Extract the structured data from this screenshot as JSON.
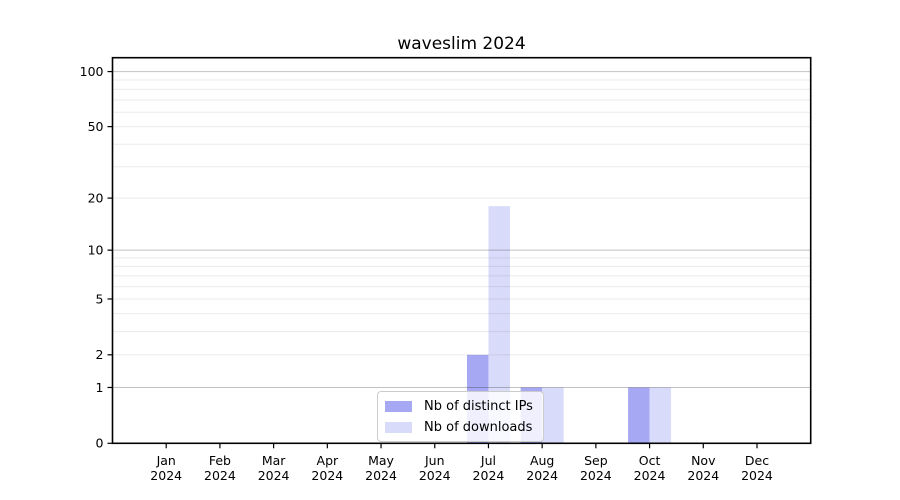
{
  "chart_data": {
    "type": "bar",
    "title": "waveslim 2024",
    "categories": [
      "Jan",
      "Feb",
      "Mar",
      "Apr",
      "May",
      "Jun",
      "Jul",
      "Aug",
      "Sep",
      "Oct",
      "Nov",
      "Dec"
    ],
    "year_label": "2024",
    "series": [
      {
        "name": "Nb of distinct IPs",
        "color": "#a6a8f3",
        "values": [
          0,
          0,
          0,
          0,
          0,
          0,
          2,
          1,
          0,
          1,
          0,
          0
        ]
      },
      {
        "name": "Nb of downloads",
        "color": "#d9dbfa",
        "values": [
          0,
          0,
          0,
          0,
          0,
          0,
          18,
          1,
          0,
          1,
          0,
          0
        ]
      }
    ],
    "yscale": "log1p",
    "yticks": [
      0,
      1,
      2,
      5,
      10,
      20,
      50,
      100
    ],
    "ylim": [
      0,
      119
    ],
    "xlabel": "",
    "ylabel": "",
    "grid": "horizontal",
    "legend_position": "lower center"
  }
}
